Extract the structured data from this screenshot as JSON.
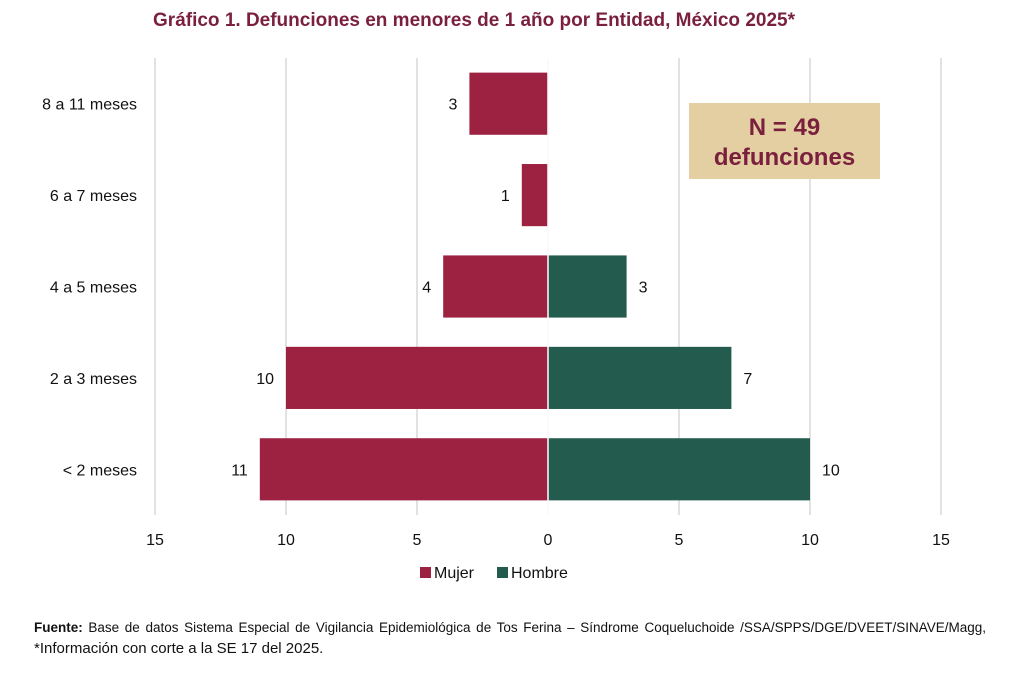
{
  "chart_data": {
    "type": "bar",
    "orientation": "horizontal-diverging",
    "title": "Gráfico 1. Defunciones en menores de 1 año por Entidad, México 2025*",
    "categories": [
      "8 a 11 meses",
      "6 a 7 meses",
      "4 a 5 meses",
      "2 a 3 meses",
      "< 2 meses"
    ],
    "series": [
      {
        "name": "Mujer",
        "color": "#9d2141",
        "values": [
          3,
          1,
          4,
          10,
          11
        ]
      },
      {
        "name": "Hombre",
        "color": "#235b4e",
        "values": [
          null,
          null,
          3,
          7,
          10
        ]
      }
    ],
    "xlim": [
      -15,
      15
    ],
    "xticks": [
      -15,
      -10,
      -5,
      0,
      5,
      10,
      15
    ],
    "xtick_labels": [
      "15",
      "10",
      "5",
      "0",
      "5",
      "10",
      "15"
    ],
    "grid": "vertical",
    "legend": "bottom-center",
    "annotation": {
      "line1": "N = 49",
      "line2": "defunciones",
      "bg_color": "#e3cfa2"
    }
  },
  "footnote": {
    "label": "Fuente:",
    "text": "Base de datos Sistema Especial de Vigilancia Epidemiológica de Tos Ferina – Síndrome Coqueluchoide /SSA/SPPS/DGE/DVEET/SINAVE/Magg,",
    "note": "*Información con corte a la SE 17 del 2025."
  }
}
